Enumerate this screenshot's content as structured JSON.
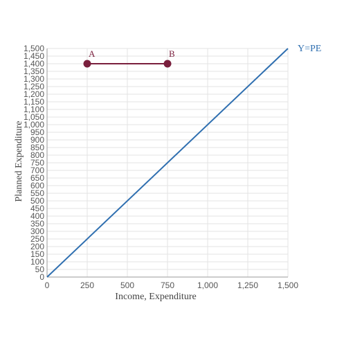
{
  "chart_data": {
    "type": "line",
    "xlabel": "Income, Expenditure",
    "ylabel": "Planned Expenditure",
    "xlim": [
      0,
      1500
    ],
    "ylim": [
      0,
      1500
    ],
    "x_ticks": [
      0,
      250,
      500,
      750,
      1000,
      1250,
      1500
    ],
    "x_tick_labels": [
      "0",
      "250",
      "500",
      "750",
      "1,000",
      "1,250",
      "1,500"
    ],
    "y_ticks": [
      0,
      50,
      100,
      150,
      200,
      250,
      300,
      350,
      400,
      450,
      500,
      550,
      600,
      650,
      700,
      750,
      800,
      850,
      900,
      950,
      1000,
      1050,
      1100,
      1150,
      1200,
      1250,
      1300,
      1350,
      1400,
      1450,
      1500
    ],
    "y_tick_labels": [
      "0",
      "50",
      "100",
      "150",
      "200",
      "250",
      "300",
      "350",
      "400",
      "450",
      "500",
      "550",
      "600",
      "650",
      "700",
      "750",
      "800",
      "850",
      "900",
      "950",
      "1,000",
      "1,050",
      "1,100",
      "1,150",
      "1,200",
      "1,250",
      "1,300",
      "1,350",
      "1,400",
      "1,450",
      "1,500"
    ],
    "grid": true,
    "series": [
      {
        "name": "Y=PE",
        "color": "#2f6fb0",
        "points": [
          {
            "x": 0,
            "y": 0
          },
          {
            "x": 1500,
            "y": 1500
          }
        ]
      },
      {
        "name": "",
        "color": "#7a1f3d",
        "points": [
          {
            "x": 250,
            "y": 1400,
            "label": "A"
          },
          {
            "x": 750,
            "y": 1400,
            "label": "B"
          }
        ]
      }
    ]
  }
}
